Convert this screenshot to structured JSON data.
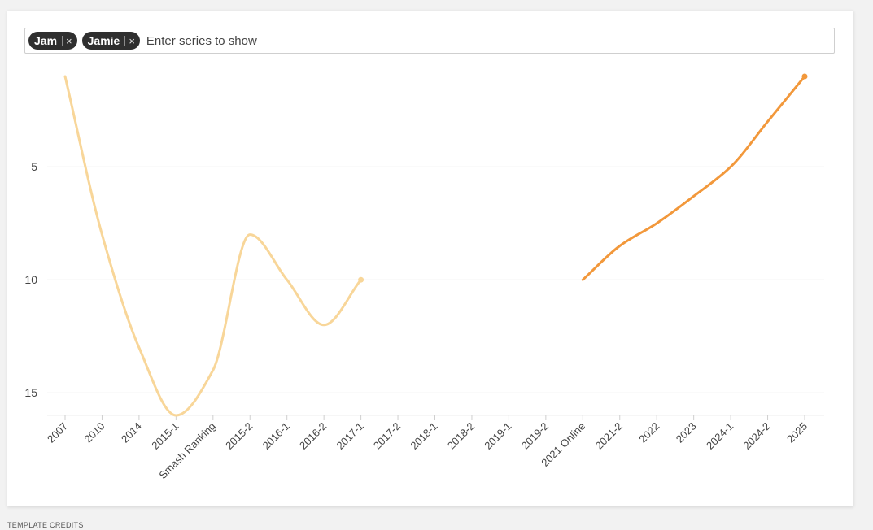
{
  "series_picker": {
    "chips": [
      {
        "label": "Jam",
        "remove": "×"
      },
      {
        "label": "Jamie",
        "remove": "×"
      }
    ],
    "placeholder": "Enter series to show"
  },
  "footer": {
    "credits": "TEMPLATE CREDITS"
  },
  "chart_data": {
    "type": "line",
    "categories": [
      "2007",
      "2010",
      "2014",
      "2015-1",
      "Smash Ranking",
      "2015-2",
      "2016-1",
      "2016-2",
      "2017-1",
      "2017-2",
      "2018-1",
      "2018-2",
      "2019-1",
      "2019-2",
      "2021 Online",
      "2021-2",
      "2022",
      "2023",
      "2024-1",
      "2024-2",
      "2025"
    ],
    "y_axis": {
      "ticks": [
        5,
        10,
        15
      ],
      "range": [
        1,
        16
      ],
      "reversed": true,
      "grid": true
    },
    "series": [
      {
        "name": "Jam",
        "color": "#f8d699",
        "values": [
          1,
          8,
          13,
          16,
          14,
          8,
          10,
          12,
          10,
          null,
          null,
          null,
          null,
          null,
          null,
          null,
          null,
          null,
          null,
          null,
          null
        ]
      },
      {
        "name": "Jamie",
        "color": "#f2983b",
        "values": [
          null,
          null,
          null,
          null,
          null,
          null,
          null,
          null,
          null,
          null,
          null,
          null,
          null,
          null,
          10,
          8.5,
          7.5,
          6.3,
          5,
          3,
          1
        ]
      }
    ]
  }
}
